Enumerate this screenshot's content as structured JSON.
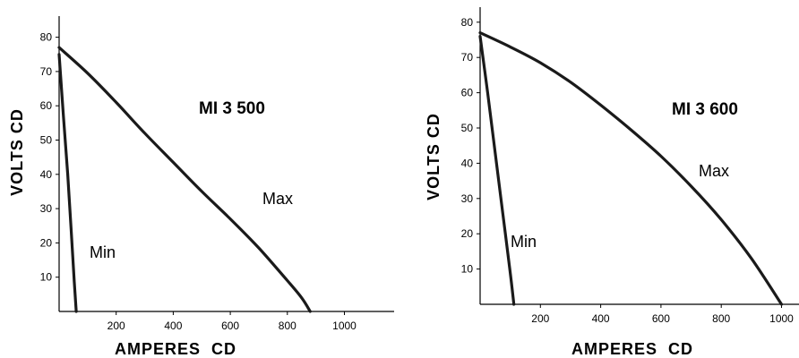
{
  "chart_data": [
    {
      "type": "line",
      "title": "MI 3 500",
      "xlabel": "AMPERES  CD",
      "ylabel": "VOLTS CD",
      "xlim": [
        0,
        1100
      ],
      "ylim": [
        0,
        85
      ],
      "x_ticks": [
        200,
        400,
        600,
        800,
        1000
      ],
      "y_ticks": [
        10,
        20,
        30,
        40,
        50,
        60,
        70,
        80
      ],
      "grid": false,
      "series": [
        {
          "name": "Max",
          "x": [
            0,
            100,
            200,
            300,
            400,
            500,
            600,
            700,
            800,
            850,
            880
          ],
          "y": [
            77,
            69.5,
            61,
            52,
            43.5,
            35,
            27,
            18.5,
            9,
            4,
            0
          ]
        },
        {
          "name": "Min",
          "x": [
            0,
            15,
            30,
            42,
            52,
            60
          ],
          "y": [
            75,
            57,
            40,
            24,
            10,
            0
          ]
        }
      ]
    },
    {
      "type": "line",
      "title": "MI 3 600",
      "xlabel": "AMPERES  CD",
      "ylabel": "VOLTS CD",
      "xlim": [
        0,
        1100
      ],
      "ylim": [
        0,
        85
      ],
      "x_ticks": [
        200,
        400,
        600,
        800,
        1000
      ],
      "y_ticks": [
        10,
        20,
        30,
        40,
        50,
        60,
        70,
        80
      ],
      "grid": false,
      "series": [
        {
          "name": "Max",
          "x": [
            0,
            100,
            200,
            300,
            400,
            500,
            600,
            700,
            800,
            900,
            1000
          ],
          "y": [
            77,
            73,
            68.5,
            63,
            56.5,
            49.5,
            42,
            33.5,
            24,
            13,
            0
          ]
        },
        {
          "name": "Min",
          "x": [
            0,
            25,
            50,
            75,
            100,
            112
          ],
          "y": [
            76,
            60,
            43,
            26,
            9,
            0
          ]
        }
      ]
    }
  ]
}
